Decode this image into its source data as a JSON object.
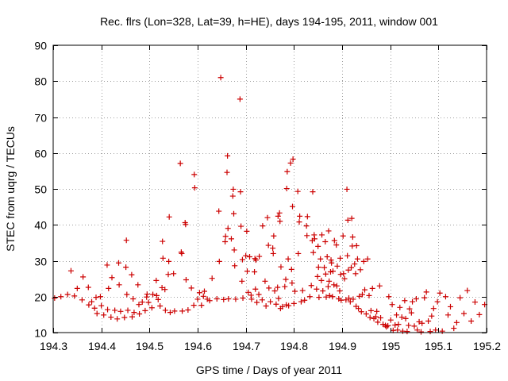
{
  "chart_data": {
    "type": "scatter",
    "title": "Rec. flrs (Lon=328, Lat=39, h=HE), days 194-195, 2011, window 001",
    "xlabel": "GPS time / Days of year 2011",
    "ylabel": "STEC from uqrg / TECUs",
    "xlim": [
      194.3,
      195.2
    ],
    "ylim": [
      10,
      90
    ],
    "xticks": [
      194.3,
      194.4,
      194.5,
      194.6,
      194.7,
      194.8,
      194.9,
      195.0,
      195.1,
      195.2
    ],
    "xtick_labels": [
      "194.3",
      "194.4",
      "194.5",
      "194.6",
      "194.7",
      "194.8",
      "194.9",
      "195",
      "195.1",
      "195.2"
    ],
    "yticks": [
      10,
      20,
      30,
      40,
      50,
      60,
      70,
      80,
      90
    ],
    "ytick_labels": [
      "10",
      "20",
      "30",
      "40",
      "50",
      "60",
      "70",
      "80",
      "90"
    ],
    "grid": true,
    "marker": "+",
    "marker_color": "#cc0000",
    "series": [
      {
        "name": "STEC",
        "points": [
          [
            194.303,
            19.6
          ],
          [
            194.316,
            20.0
          ],
          [
            194.33,
            20.6
          ],
          [
            194.337,
            27.2
          ],
          [
            194.344,
            20.2
          ],
          [
            194.35,
            22.3
          ],
          [
            194.36,
            19.1
          ],
          [
            194.362,
            25.5
          ],
          [
            194.373,
            22.6
          ],
          [
            194.374,
            17.7
          ],
          [
            194.38,
            18.6
          ],
          [
            194.386,
            16.8
          ],
          [
            194.389,
            19.8
          ],
          [
            194.391,
            15.3
          ],
          [
            194.398,
            20.0
          ],
          [
            194.4,
            17.5
          ],
          [
            194.405,
            14.9
          ],
          [
            194.412,
            28.8
          ],
          [
            194.413,
            16.4
          ],
          [
            194.415,
            22.3
          ],
          [
            194.42,
            14.3
          ],
          [
            194.422,
            25.3
          ],
          [
            194.428,
            16.2
          ],
          [
            194.433,
            13.8
          ],
          [
            194.436,
            29.4
          ],
          [
            194.437,
            23.3
          ],
          [
            194.44,
            15.9
          ],
          [
            194.448,
            14.2
          ],
          [
            194.451,
            28.2
          ],
          [
            194.452,
            35.7
          ],
          [
            194.453,
            20.6
          ],
          [
            194.455,
            16.2
          ],
          [
            194.463,
            26.1
          ],
          [
            194.464,
            14.4
          ],
          [
            194.466,
            19.4
          ],
          [
            194.468,
            15.6
          ],
          [
            194.476,
            23.3
          ],
          [
            194.478,
            17.8
          ],
          [
            194.479,
            15.2
          ],
          [
            194.485,
            18.5
          ],
          [
            194.491,
            16.1
          ],
          [
            194.494,
            19.9
          ],
          [
            194.495,
            20.7
          ],
          [
            194.498,
            18.4
          ],
          [
            194.505,
            16.9
          ],
          [
            194.507,
            20.6
          ],
          [
            194.514,
            24.5
          ],
          [
            194.515,
            20.3
          ],
          [
            194.518,
            19.2
          ],
          [
            194.522,
            17.4
          ],
          [
            194.526,
            22.5
          ],
          [
            194.527,
            35.4
          ],
          [
            194.528,
            30.7
          ],
          [
            194.532,
            22.0
          ],
          [
            194.533,
            16.2
          ],
          [
            194.539,
            26.2
          ],
          [
            194.54,
            29.8
          ],
          [
            194.541,
            42.2
          ],
          [
            194.543,
            15.6
          ],
          [
            194.55,
            26.4
          ],
          [
            194.552,
            16.0
          ],
          [
            194.564,
            57.1
          ],
          [
            194.566,
            32.4
          ],
          [
            194.567,
            32.0
          ],
          [
            194.568,
            16.0
          ],
          [
            194.574,
            40.6
          ],
          [
            194.575,
            40.1
          ],
          [
            194.576,
            24.7
          ],
          [
            194.58,
            16.3
          ],
          [
            194.587,
            22.4
          ],
          [
            194.592,
            17.6
          ],
          [
            194.593,
            54.0
          ],
          [
            194.594,
            50.3
          ],
          [
            194.6,
            19.3
          ],
          [
            194.604,
            21.1
          ],
          [
            194.608,
            17.6
          ],
          [
            194.612,
            20.1
          ],
          [
            194.614,
            21.5
          ],
          [
            194.62,
            19.3
          ],
          [
            194.625,
            18.9
          ],
          [
            194.63,
            25.1
          ],
          [
            194.64,
            19.4
          ],
          [
            194.644,
            43.8
          ],
          [
            194.645,
            29.8
          ],
          [
            194.648,
            81.0
          ],
          [
            194.654,
            19.2
          ],
          [
            194.657,
            35.3
          ],
          [
            194.658,
            36.8
          ],
          [
            194.661,
            54.6
          ],
          [
            194.662,
            59.2
          ],
          [
            194.663,
            39.0
          ],
          [
            194.664,
            19.4
          ],
          [
            194.67,
            36.1
          ],
          [
            194.673,
            48.0
          ],
          [
            194.674,
            49.9
          ],
          [
            194.675,
            43.1
          ],
          [
            194.676,
            33.0
          ],
          [
            194.677,
            28.6
          ],
          [
            194.679,
            19.3
          ],
          [
            194.688,
            75.0
          ],
          [
            194.689,
            49.2
          ],
          [
            194.69,
            39.6
          ],
          [
            194.692,
            24.3
          ],
          [
            194.693,
            30.3
          ],
          [
            194.694,
            19.6
          ],
          [
            194.7,
            31.4
          ],
          [
            194.702,
            38.2
          ],
          [
            194.703,
            27.1
          ],
          [
            194.705,
            21.2
          ],
          [
            194.708,
            31.1
          ],
          [
            194.711,
            20.4
          ],
          [
            194.712,
            19.3
          ],
          [
            194.718,
            26.9
          ],
          [
            194.719,
            30.6
          ],
          [
            194.72,
            22.1
          ],
          [
            194.721,
            30.2
          ],
          [
            194.723,
            18.4
          ],
          [
            194.727,
            20.6
          ],
          [
            194.728,
            31.2
          ],
          [
            194.734,
            19.1
          ],
          [
            194.735,
            39.7
          ],
          [
            194.74,
            24.3
          ],
          [
            194.742,
            17.4
          ],
          [
            194.745,
            42.0
          ],
          [
            194.747,
            34.3
          ],
          [
            194.748,
            22.4
          ],
          [
            194.751,
            18.6
          ],
          [
            194.756,
            33.5
          ],
          [
            194.757,
            32.0
          ],
          [
            194.758,
            36.9
          ],
          [
            194.76,
            21.6
          ],
          [
            194.763,
            17.9
          ],
          [
            194.766,
            22.6
          ],
          [
            194.767,
            42.4
          ],
          [
            194.768,
            19.5
          ],
          [
            194.77,
            43.3
          ],
          [
            194.771,
            41.0
          ],
          [
            194.772,
            16.7
          ],
          [
            194.773,
            28.3
          ],
          [
            194.776,
            17.2
          ],
          [
            194.781,
            22.8
          ],
          [
            194.783,
            24.8
          ],
          [
            194.784,
            17.7
          ],
          [
            194.785,
            50.1
          ],
          [
            194.786,
            54.8
          ],
          [
            194.788,
            30.5
          ],
          [
            194.789,
            17.5
          ],
          [
            194.793,
            57.2
          ],
          [
            194.795,
            27.6
          ],
          [
            194.796,
            23.8
          ],
          [
            194.797,
            45.1
          ],
          [
            194.798,
            58.3
          ],
          [
            194.8,
            18.1
          ],
          [
            194.802,
            21.5
          ],
          [
            194.808,
            49.3
          ],
          [
            194.809,
            32.0
          ],
          [
            194.811,
            40.8
          ],
          [
            194.812,
            42.4
          ],
          [
            194.815,
            18.6
          ],
          [
            194.818,
            21.7
          ],
          [
            194.822,
            19.0
          ],
          [
            194.826,
            39.7
          ],
          [
            194.827,
            37.0
          ],
          [
            194.828,
            42.3
          ],
          [
            194.833,
            20.0
          ],
          [
            194.836,
            23.1
          ],
          [
            194.838,
            35.6
          ],
          [
            194.839,
            49.2
          ],
          [
            194.84,
            32.3
          ],
          [
            194.842,
            37.2
          ],
          [
            194.843,
            36.1
          ],
          [
            194.847,
            22.1
          ],
          [
            194.849,
            25.6
          ],
          [
            194.85,
            34.0
          ],
          [
            194.851,
            28.2
          ],
          [
            194.852,
            19.8
          ],
          [
            194.855,
            30.5
          ],
          [
            194.857,
            24.5
          ],
          [
            194.858,
            37.2
          ],
          [
            194.86,
            21.6
          ],
          [
            194.863,
            28.1
          ],
          [
            194.865,
            35.3
          ],
          [
            194.866,
            26.3
          ],
          [
            194.867,
            19.9
          ],
          [
            194.869,
            31.1
          ],
          [
            194.871,
            22.8
          ],
          [
            194.872,
            38.3
          ],
          [
            194.873,
            24.3
          ],
          [
            194.874,
            20.3
          ],
          [
            194.876,
            26.9
          ],
          [
            194.877,
            30.2
          ],
          [
            194.878,
            29.4
          ],
          [
            194.88,
            20.0
          ],
          [
            194.881,
            27.1
          ],
          [
            194.883,
            23.3
          ],
          [
            194.884,
            35.6
          ],
          [
            194.888,
            34.4
          ],
          [
            194.889,
            23.0
          ],
          [
            194.89,
            28.5
          ],
          [
            194.893,
            19.4
          ],
          [
            194.895,
            21.6
          ],
          [
            194.896,
            30.7
          ],
          [
            194.897,
            26.2
          ],
          [
            194.898,
            19.0
          ],
          [
            194.902,
            36.9
          ],
          [
            194.903,
            26.4
          ],
          [
            194.905,
            25.0
          ],
          [
            194.908,
            19.1
          ],
          [
            194.91,
            49.9
          ],
          [
            194.911,
            31.4
          ],
          [
            194.912,
            41.3
          ],
          [
            194.913,
            27.4
          ],
          [
            194.914,
            19.6
          ],
          [
            194.917,
            18.6
          ],
          [
            194.919,
            28.1
          ],
          [
            194.92,
            41.8
          ],
          [
            194.921,
            34.1
          ],
          [
            194.922,
            36.6
          ],
          [
            194.923,
            19.3
          ],
          [
            194.926,
            29.1
          ],
          [
            194.928,
            26.4
          ],
          [
            194.929,
            17.3
          ],
          [
            194.93,
            34.2
          ],
          [
            194.932,
            30.5
          ],
          [
            194.934,
            16.7
          ],
          [
            194.936,
            20.1
          ],
          [
            194.938,
            27.5
          ],
          [
            194.94,
            15.8
          ],
          [
            194.942,
            20.6
          ],
          [
            194.945,
            29.8
          ],
          [
            194.947,
            21.9
          ],
          [
            194.95,
            15.2
          ],
          [
            194.953,
            30.5
          ],
          [
            194.956,
            20.3
          ],
          [
            194.958,
            14.2
          ],
          [
            194.96,
            16.1
          ],
          [
            194.963,
            22.3
          ],
          [
            194.966,
            13.9
          ],
          [
            194.97,
            14.4
          ],
          [
            194.972,
            15.9
          ],
          [
            194.974,
            12.9
          ],
          [
            194.978,
            23.0
          ],
          [
            194.98,
            14.1
          ],
          [
            194.985,
            12.3
          ],
          [
            194.99,
            12.0
          ],
          [
            194.992,
            11.6
          ],
          [
            194.995,
            11.9
          ],
          [
            194.997,
            20.0
          ],
          [
            195.001,
            13.5
          ],
          [
            195.004,
            17.8
          ],
          [
            195.006,
            10.6
          ],
          [
            195.01,
            12.1
          ],
          [
            195.013,
            14.9
          ],
          [
            195.015,
            10.7
          ],
          [
            195.017,
            12.3
          ],
          [
            195.02,
            17.0
          ],
          [
            195.024,
            14.3
          ],
          [
            195.026,
            10.4
          ],
          [
            195.03,
            18.9
          ],
          [
            195.032,
            13.9
          ],
          [
            195.035,
            10.3
          ],
          [
            195.038,
            12.0
          ],
          [
            195.04,
            16.6
          ],
          [
            195.044,
            15.5
          ],
          [
            195.046,
            18.6
          ],
          [
            195.05,
            11.8
          ],
          [
            195.054,
            19.4
          ],
          [
            195.056,
            10.7
          ],
          [
            195.06,
            13.0
          ],
          [
            195.064,
            10.2
          ],
          [
            195.066,
            12.6
          ],
          [
            195.071,
            19.7
          ],
          [
            195.075,
            21.3
          ],
          [
            195.079,
            13.2
          ],
          [
            195.083,
            10.3
          ],
          [
            195.086,
            14.6
          ],
          [
            195.09,
            16.7
          ],
          [
            195.094,
            10.7
          ],
          [
            195.098,
            18.6
          ],
          [
            195.103,
            21.0
          ],
          [
            195.108,
            10.4
          ],
          [
            195.115,
            20.0
          ],
          [
            195.12,
            14.9
          ],
          [
            195.125,
            17.2
          ],
          [
            195.132,
            11.2
          ],
          [
            195.138,
            12.8
          ],
          [
            195.145,
            19.7
          ],
          [
            195.153,
            15.3
          ],
          [
            195.16,
            21.7
          ],
          [
            195.168,
            13.2
          ],
          [
            195.176,
            18.5
          ],
          [
            195.185,
            15.0
          ],
          [
            195.196,
            17.8
          ]
        ]
      }
    ]
  }
}
